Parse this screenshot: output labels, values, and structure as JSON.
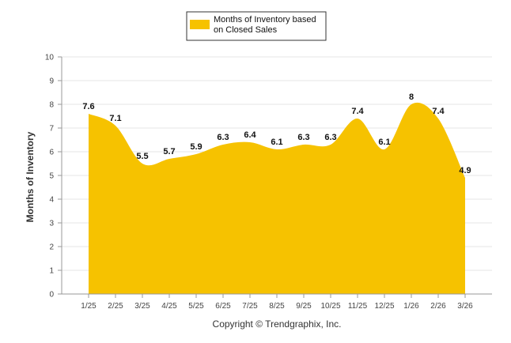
{
  "chart_data": {
    "type": "area",
    "categories": [
      "1/25",
      "2/25",
      "3/25",
      "4/25",
      "5/25",
      "6/25",
      "7/25",
      "8/25",
      "9/25",
      "10/25",
      "11/25",
      "12/25",
      "1/26",
      "2/26",
      "3/26"
    ],
    "series": [
      {
        "name": "Months of Inventory based on Closed Sales",
        "values": [
          7.6,
          7.1,
          5.5,
          5.7,
          5.9,
          6.3,
          6.4,
          6.1,
          6.3,
          6.3,
          7.4,
          6.1,
          8,
          7.4,
          4.9
        ]
      }
    ],
    "data_labels": [
      "7.6",
      "7.1",
      "5.5",
      "5.7",
      "5.9",
      "6.3",
      "6.4",
      "6.1",
      "6.3",
      "6.3",
      "7.4",
      "6.1",
      "8",
      "7.4",
      "4.9"
    ],
    "ylabel": "Months of Inventory",
    "xlabel": "",
    "ylim": [
      0,
      10
    ],
    "yticks": [
      0,
      1,
      2,
      3,
      4,
      5,
      6,
      7,
      8,
      9,
      10
    ],
    "legend": {
      "line1": "Months of Inventory based",
      "line2": "on Closed Sales",
      "position": "top-center"
    },
    "footer": "Copyright © Trendgraphix, Inc.",
    "colors": {
      "fill": "#F6C200",
      "grid": "#e6e6e6",
      "axis": "#999999"
    }
  }
}
